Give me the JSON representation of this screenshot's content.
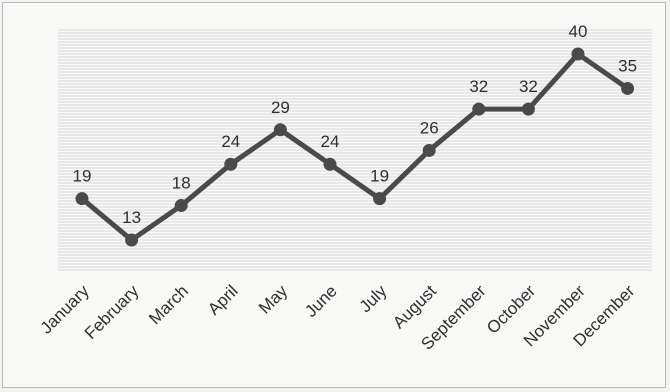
{
  "chart_data": {
    "type": "line",
    "categories": [
      "January",
      "February",
      "March",
      "April",
      "May",
      "June",
      "July",
      "August",
      "September",
      "October",
      "November",
      "December"
    ],
    "values": [
      19,
      13,
      18,
      24,
      29,
      24,
      19,
      26,
      32,
      32,
      40,
      35
    ],
    "title": "",
    "xlabel": "",
    "ylabel": "",
    "ylim": [
      10,
      42
    ],
    "grid": true,
    "legend": "none",
    "line_color": "#4a4a4a"
  }
}
